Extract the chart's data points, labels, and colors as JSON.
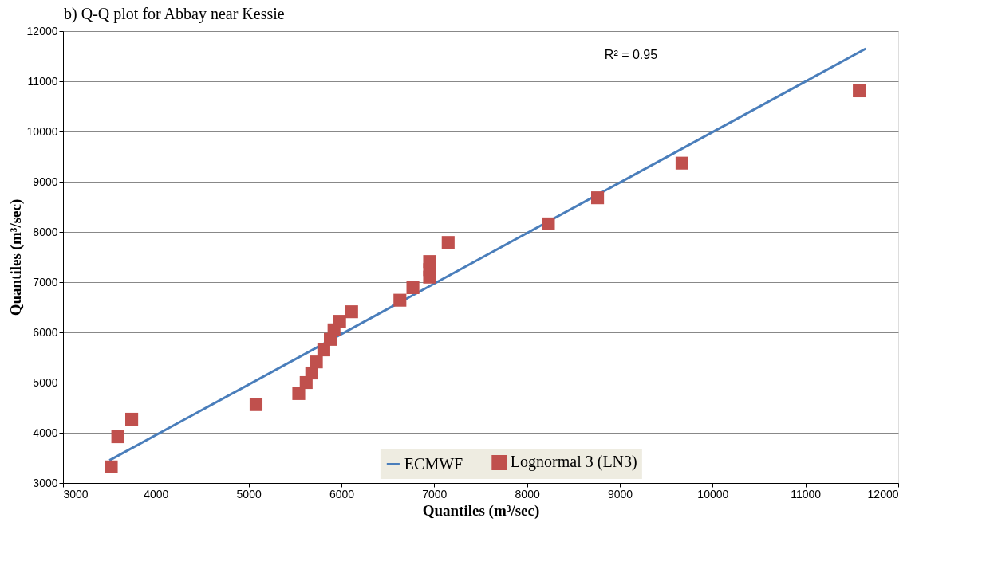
{
  "chart_data": {
    "type": "scatter",
    "title": "b) Q-Q plot for Abbay near Kessie",
    "xlabel": "Quantiles (m³/sec)",
    "ylabel": "Quantiles (m³/sec)",
    "annotations": [
      "R² = 0.95"
    ],
    "series": [
      {
        "name": "ECMWF",
        "type": "line",
        "color": "#4a7ebb",
        "marker": "none",
        "x": [
          3500,
          11650
        ],
        "values": [
          3450,
          11650
        ]
      },
      {
        "name": "Lognormal 3 (LN3)",
        "color": "#c0504d",
        "marker": "square",
        "x": [
          3520,
          3590,
          3740,
          5080,
          5540,
          5620,
          5680,
          5730,
          5810,
          5880,
          5920,
          5980,
          6110,
          6630,
          6770,
          6950,
          6950,
          6950,
          7150,
          8230,
          8760,
          9670,
          11580
        ],
        "values": [
          3320,
          3920,
          4270,
          4560,
          4780,
          5000,
          5190,
          5410,
          5650,
          5860,
          6050,
          6220,
          6410,
          6640,
          6890,
          7100,
          7250,
          7410,
          7790,
          8160,
          8680,
          9370,
          10810
        ]
      }
    ],
    "xlim": [
      3000,
      12000
    ],
    "xticks": [
      3000,
      4000,
      5000,
      6000,
      7000,
      8000,
      9000,
      10000,
      11000,
      12000
    ],
    "ylim": [
      3000,
      12000
    ],
    "yticks": [
      3000,
      4000,
      5000,
      6000,
      7000,
      8000,
      9000,
      10000,
      11000,
      12000
    ],
    "grid": "y",
    "legend": "bottom"
  }
}
